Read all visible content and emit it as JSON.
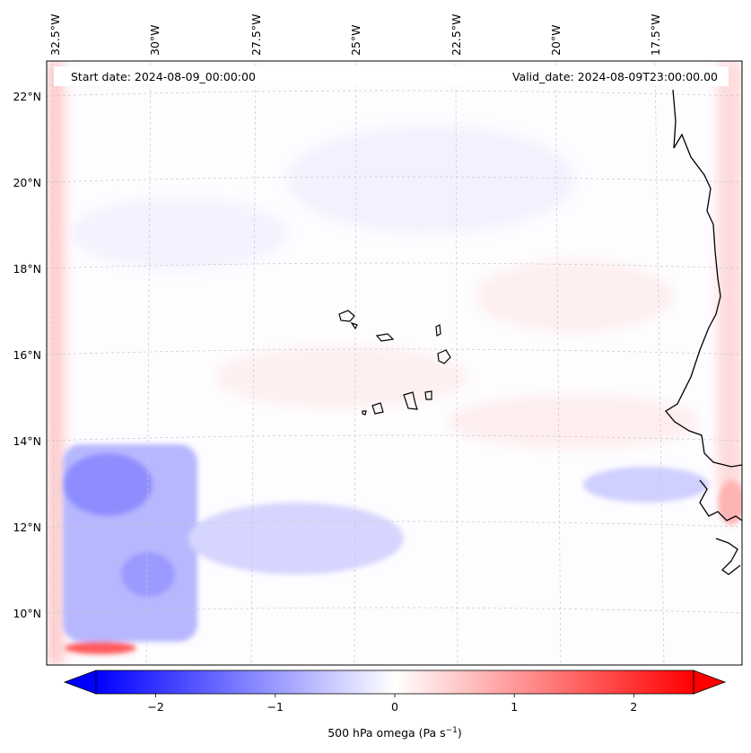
{
  "header": {
    "start_date": "Start date: 2024-08-09_00:00:00",
    "valid_date": "Valid_date: 2024-08-09T23:00:00.00"
  },
  "longitude_ticks": [
    "32.5°W",
    "30°W",
    "27.5°W",
    "25°W",
    "22.5°W",
    "20°W",
    "17.5°W"
  ],
  "latitude_ticks": [
    "22°N",
    "20°N",
    "18°N",
    "16°N",
    "14°N",
    "12°N",
    "10°N"
  ],
  "colorbar": {
    "label_main": "500 hPa omega (Pa s",
    "label_exp": "−1",
    "label_end": ")",
    "ticks": [
      "−2",
      "−1",
      "0",
      "1",
      "2"
    ],
    "tick_values": [
      -2,
      -1,
      0,
      1,
      2
    ],
    "range": [
      -2.5,
      2.5
    ],
    "colormap": "bwr",
    "extend": "both"
  },
  "colors": {
    "negative": "#0000ff",
    "zero": "#ffffff",
    "positive": "#ff0000",
    "coastline": "#000000",
    "gridline": "#c8c8c8"
  }
}
